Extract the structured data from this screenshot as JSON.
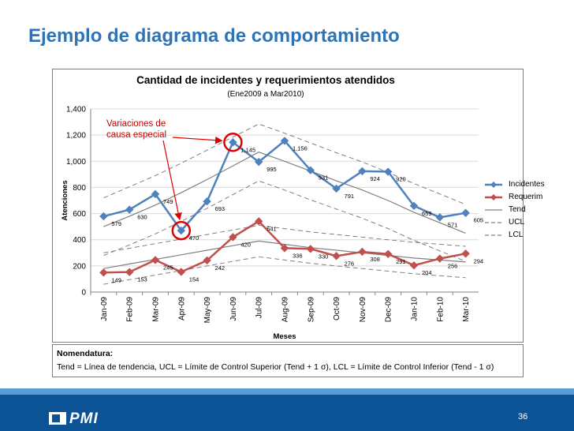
{
  "slide": {
    "title": "Ejemplo de diagrama de comportamiento",
    "page_number": "36",
    "logo_text": "PMI"
  },
  "annotation": {
    "line1": "Variaciones de",
    "line2": "causa especial"
  },
  "nomenclature": {
    "title": "Nomendatura:",
    "text": "Tend = Línea de tendencia, UCL = Límite de Control Superior (Tend + 1 σ), LCL = Límite de Control Inferior (Tend - 1 σ)"
  },
  "colors": {
    "title": "#2e74b5",
    "incidentes": "#4f81bd",
    "requerim": "#c0504d",
    "tend": "#808080",
    "limits": "#808080",
    "annotation": "#c00000",
    "circle": "#e00000",
    "footer": "#0b5394"
  },
  "chart_data": {
    "type": "line",
    "title": "Cantidad de incidentes y requerimientos atendidos",
    "subtitle": "(Ene2009 a Mar2010)",
    "xlabel": "Meses",
    "ylabel": "Atenciones",
    "ylim": [
      0,
      1400
    ],
    "yticks": [
      0,
      200,
      400,
      600,
      800,
      1000,
      1200,
      1400
    ],
    "ytick_labels": [
      "0",
      "200",
      "400",
      "600",
      "800",
      "1,000",
      "1,200",
      "1,400"
    ],
    "categories": [
      "Jan-09",
      "Feb-09",
      "Mar-09",
      "Apr-09",
      "May-09",
      "Jun-09",
      "Jul-09",
      "Aug-09",
      "Sep-09",
      "Oct-09",
      "Nov-09",
      "Dec-09",
      "Jan-10",
      "Feb-10",
      "Mar-10"
    ],
    "grid": true,
    "legend_position": "right",
    "series": [
      {
        "name": "Incidentes",
        "style": "line-marker-diamond",
        "values": [
          579,
          630,
          749,
          470,
          693,
          1145,
          995,
          1156,
          931,
          791,
          924,
          920,
          659,
          571,
          605
        ],
        "labels": [
          "579",
          "630",
          "749",
          "470",
          "693",
          "1,145",
          "995",
          "1,156",
          "931",
          "791",
          "924",
          "920",
          "659",
          "571",
          "605"
        ]
      },
      {
        "name": "Requerim",
        "style": "line-marker-diamond",
        "values": [
          149,
          153,
          245,
          154,
          242,
          420,
          541,
          336,
          330,
          276,
          308,
          291,
          204,
          256,
          294
        ],
        "labels": [
          "149",
          "153",
          "245",
          "154",
          "242",
          "420",
          "541",
          "336",
          "330",
          "276",
          "308",
          "291",
          "204",
          "256",
          "294"
        ]
      },
      {
        "name": "Tend",
        "style": "solid",
        "values": [
          500,
          580,
          665,
          760,
          860,
          965,
          1070,
          1000,
          925,
          850,
          780,
          700,
          610,
          530,
          450
        ]
      },
      {
        "name": "UCL",
        "style": "dashed",
        "values": [
          720,
          805,
          890,
          985,
          1085,
          1185,
          1285,
          1215,
          1140,
          1065,
          995,
          915,
          830,
          750,
          670
        ]
      },
      {
        "name": "LCL",
        "style": "dashed",
        "values": [
          280,
          360,
          445,
          540,
          640,
          745,
          850,
          780,
          705,
          635,
          565,
          485,
          395,
          315,
          235
        ]
      },
      {
        "name": "",
        "style": "solid",
        "values": [
          180,
          215,
          250,
          285,
          320,
          355,
          390,
          365,
          340,
          320,
          300,
          280,
          260,
          245,
          230
        ]
      },
      {
        "name": "",
        "style": "dashed",
        "values": [
          300,
          335,
          370,
          405,
          440,
          475,
          510,
          485,
          460,
          440,
          420,
          400,
          380,
          365,
          350
        ]
      },
      {
        "name": "",
        "style": "dashed",
        "values": [
          60,
          95,
          130,
          165,
          200,
          235,
          270,
          245,
          220,
          200,
          180,
          160,
          140,
          125,
          110
        ]
      }
    ],
    "highlighted_points": [
      {
        "series": "Incidentes",
        "category": "Jun-09"
      },
      {
        "series": "Incidentes",
        "category": "Apr-09"
      }
    ]
  }
}
